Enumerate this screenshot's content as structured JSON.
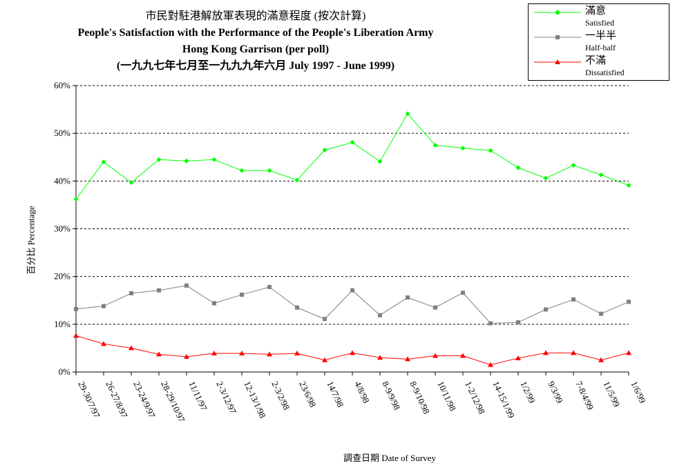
{
  "title": {
    "line1": "市民對駐港解放軍表現的滿意程度 (按次計算)",
    "line2": "People's Satisfaction with the Performance of the People's Liberation Army",
    "line3": "Hong Kong Garrison  (per poll)",
    "line4": "(一九九七年七月至一九九九年六月 July 1997 - June 1999)"
  },
  "legend": [
    {
      "name": "滿意",
      "sub": "Satisfied",
      "color": "#00ff00",
      "marker": "diamond"
    },
    {
      "name": "一半半",
      "sub": "Half-half",
      "color": "#808080",
      "marker": "square"
    },
    {
      "name": "不滿",
      "sub": "Dissatisfied",
      "color": "#ff0000",
      "marker": "triangle"
    }
  ],
  "chart_data": {
    "type": "line",
    "xlabel": "調查日期 Date of Survey",
    "ylabel": "百分比 Percentage",
    "ylim": [
      0,
      60
    ],
    "yticks": [
      "0%",
      "10%",
      "20%",
      "30%",
      "40%",
      "50%",
      "60%"
    ],
    "grid": true,
    "legend_position": "top-right",
    "categories": [
      "29-30/7/97",
      "26-27/8/97",
      "23-24/9/97",
      "28-29/10/97",
      "11/11/97",
      "2-3/12/97",
      "12-13/1/98",
      "2-3/2/98",
      "23/6/98",
      "14/7/98",
      "4/8/98",
      "8-9/9/98",
      "8-9/10/98",
      "10/11/98",
      "1-2/12/98",
      "14-15/1/99",
      "1/2/99",
      "9/3/99",
      "7-8/4/99",
      "11/5/99",
      "1/6/99"
    ],
    "series": [
      {
        "name": "滿意 Satisfied",
        "color": "#00ff00",
        "values": [
          36.2,
          44.0,
          39.7,
          44.5,
          44.2,
          44.5,
          42.2,
          42.2,
          40.2,
          46.5,
          48.1,
          44.1,
          54.1,
          47.5,
          46.9,
          46.4,
          42.8,
          40.6,
          43.3,
          41.3,
          39.1
        ]
      },
      {
        "name": "一半半 Half-half",
        "color": "#808080",
        "values": [
          13.2,
          13.8,
          16.5,
          17.1,
          18.1,
          14.4,
          16.2,
          17.8,
          13.5,
          11.1,
          17.1,
          11.9,
          15.6,
          13.5,
          16.6,
          10.2,
          10.4,
          13.1,
          15.2,
          12.2,
          14.7
        ]
      },
      {
        "name": "不滿 Dissatisfied",
        "color": "#ff0000",
        "values": [
          7.6,
          5.9,
          5.0,
          3.7,
          3.2,
          3.9,
          3.9,
          3.7,
          3.9,
          2.5,
          4.0,
          3.0,
          2.7,
          3.4,
          3.4,
          1.5,
          2.9,
          4.0,
          4.0,
          2.5,
          4.0
        ]
      }
    ]
  }
}
